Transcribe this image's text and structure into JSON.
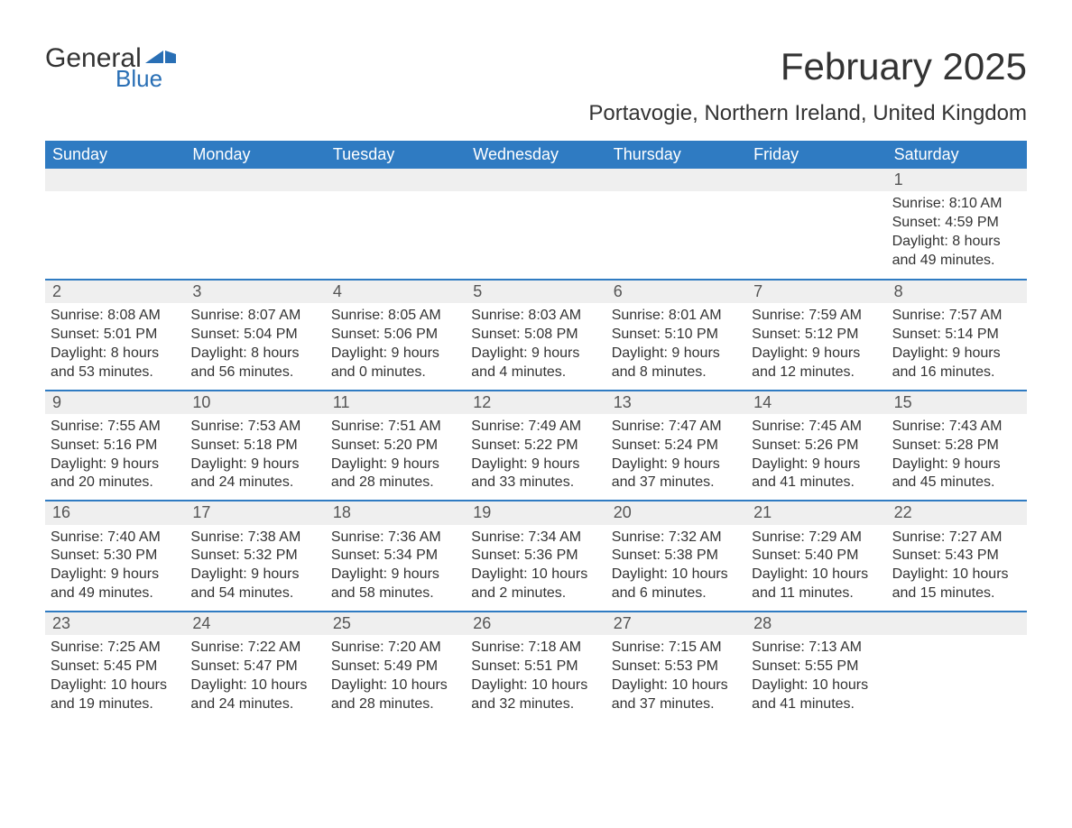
{
  "logo": {
    "word1": "General",
    "word2": "Blue",
    "brand_color": "#296fb5"
  },
  "header": {
    "month_title": "February 2025",
    "location": "Portavogie, Northern Ireland, United Kingdom"
  },
  "colors": {
    "header_bar": "#2f7bc2",
    "header_bar_text": "#ffffff",
    "daynum_bg": "#efefef",
    "week_divider": "#2f7bc2",
    "text": "#333333",
    "background": "#ffffff"
  },
  "dow": [
    "Sunday",
    "Monday",
    "Tuesday",
    "Wednesday",
    "Thursday",
    "Friday",
    "Saturday"
  ],
  "weeks": [
    [
      {
        "day": "",
        "sunrise": "",
        "sunset": "",
        "daylight1": "",
        "daylight2": ""
      },
      {
        "day": "",
        "sunrise": "",
        "sunset": "",
        "daylight1": "",
        "daylight2": ""
      },
      {
        "day": "",
        "sunrise": "",
        "sunset": "",
        "daylight1": "",
        "daylight2": ""
      },
      {
        "day": "",
        "sunrise": "",
        "sunset": "",
        "daylight1": "",
        "daylight2": ""
      },
      {
        "day": "",
        "sunrise": "",
        "sunset": "",
        "daylight1": "",
        "daylight2": ""
      },
      {
        "day": "",
        "sunrise": "",
        "sunset": "",
        "daylight1": "",
        "daylight2": ""
      },
      {
        "day": "1",
        "sunrise": "Sunrise: 8:10 AM",
        "sunset": "Sunset: 4:59 PM",
        "daylight1": "Daylight: 8 hours",
        "daylight2": "and 49 minutes."
      }
    ],
    [
      {
        "day": "2",
        "sunrise": "Sunrise: 8:08 AM",
        "sunset": "Sunset: 5:01 PM",
        "daylight1": "Daylight: 8 hours",
        "daylight2": "and 53 minutes."
      },
      {
        "day": "3",
        "sunrise": "Sunrise: 8:07 AM",
        "sunset": "Sunset: 5:04 PM",
        "daylight1": "Daylight: 8 hours",
        "daylight2": "and 56 minutes."
      },
      {
        "day": "4",
        "sunrise": "Sunrise: 8:05 AM",
        "sunset": "Sunset: 5:06 PM",
        "daylight1": "Daylight: 9 hours",
        "daylight2": "and 0 minutes."
      },
      {
        "day": "5",
        "sunrise": "Sunrise: 8:03 AM",
        "sunset": "Sunset: 5:08 PM",
        "daylight1": "Daylight: 9 hours",
        "daylight2": "and 4 minutes."
      },
      {
        "day": "6",
        "sunrise": "Sunrise: 8:01 AM",
        "sunset": "Sunset: 5:10 PM",
        "daylight1": "Daylight: 9 hours",
        "daylight2": "and 8 minutes."
      },
      {
        "day": "7",
        "sunrise": "Sunrise: 7:59 AM",
        "sunset": "Sunset: 5:12 PM",
        "daylight1": "Daylight: 9 hours",
        "daylight2": "and 12 minutes."
      },
      {
        "day": "8",
        "sunrise": "Sunrise: 7:57 AM",
        "sunset": "Sunset: 5:14 PM",
        "daylight1": "Daylight: 9 hours",
        "daylight2": "and 16 minutes."
      }
    ],
    [
      {
        "day": "9",
        "sunrise": "Sunrise: 7:55 AM",
        "sunset": "Sunset: 5:16 PM",
        "daylight1": "Daylight: 9 hours",
        "daylight2": "and 20 minutes."
      },
      {
        "day": "10",
        "sunrise": "Sunrise: 7:53 AM",
        "sunset": "Sunset: 5:18 PM",
        "daylight1": "Daylight: 9 hours",
        "daylight2": "and 24 minutes."
      },
      {
        "day": "11",
        "sunrise": "Sunrise: 7:51 AM",
        "sunset": "Sunset: 5:20 PM",
        "daylight1": "Daylight: 9 hours",
        "daylight2": "and 28 minutes."
      },
      {
        "day": "12",
        "sunrise": "Sunrise: 7:49 AM",
        "sunset": "Sunset: 5:22 PM",
        "daylight1": "Daylight: 9 hours",
        "daylight2": "and 33 minutes."
      },
      {
        "day": "13",
        "sunrise": "Sunrise: 7:47 AM",
        "sunset": "Sunset: 5:24 PM",
        "daylight1": "Daylight: 9 hours",
        "daylight2": "and 37 minutes."
      },
      {
        "day": "14",
        "sunrise": "Sunrise: 7:45 AM",
        "sunset": "Sunset: 5:26 PM",
        "daylight1": "Daylight: 9 hours",
        "daylight2": "and 41 minutes."
      },
      {
        "day": "15",
        "sunrise": "Sunrise: 7:43 AM",
        "sunset": "Sunset: 5:28 PM",
        "daylight1": "Daylight: 9 hours",
        "daylight2": "and 45 minutes."
      }
    ],
    [
      {
        "day": "16",
        "sunrise": "Sunrise: 7:40 AM",
        "sunset": "Sunset: 5:30 PM",
        "daylight1": "Daylight: 9 hours",
        "daylight2": "and 49 minutes."
      },
      {
        "day": "17",
        "sunrise": "Sunrise: 7:38 AM",
        "sunset": "Sunset: 5:32 PM",
        "daylight1": "Daylight: 9 hours",
        "daylight2": "and 54 minutes."
      },
      {
        "day": "18",
        "sunrise": "Sunrise: 7:36 AM",
        "sunset": "Sunset: 5:34 PM",
        "daylight1": "Daylight: 9 hours",
        "daylight2": "and 58 minutes."
      },
      {
        "day": "19",
        "sunrise": "Sunrise: 7:34 AM",
        "sunset": "Sunset: 5:36 PM",
        "daylight1": "Daylight: 10 hours",
        "daylight2": "and 2 minutes."
      },
      {
        "day": "20",
        "sunrise": "Sunrise: 7:32 AM",
        "sunset": "Sunset: 5:38 PM",
        "daylight1": "Daylight: 10 hours",
        "daylight2": "and 6 minutes."
      },
      {
        "day": "21",
        "sunrise": "Sunrise: 7:29 AM",
        "sunset": "Sunset: 5:40 PM",
        "daylight1": "Daylight: 10 hours",
        "daylight2": "and 11 minutes."
      },
      {
        "day": "22",
        "sunrise": "Sunrise: 7:27 AM",
        "sunset": "Sunset: 5:43 PM",
        "daylight1": "Daylight: 10 hours",
        "daylight2": "and 15 minutes."
      }
    ],
    [
      {
        "day": "23",
        "sunrise": "Sunrise: 7:25 AM",
        "sunset": "Sunset: 5:45 PM",
        "daylight1": "Daylight: 10 hours",
        "daylight2": "and 19 minutes."
      },
      {
        "day": "24",
        "sunrise": "Sunrise: 7:22 AM",
        "sunset": "Sunset: 5:47 PM",
        "daylight1": "Daylight: 10 hours",
        "daylight2": "and 24 minutes."
      },
      {
        "day": "25",
        "sunrise": "Sunrise: 7:20 AM",
        "sunset": "Sunset: 5:49 PM",
        "daylight1": "Daylight: 10 hours",
        "daylight2": "and 28 minutes."
      },
      {
        "day": "26",
        "sunrise": "Sunrise: 7:18 AM",
        "sunset": "Sunset: 5:51 PM",
        "daylight1": "Daylight: 10 hours",
        "daylight2": "and 32 minutes."
      },
      {
        "day": "27",
        "sunrise": "Sunrise: 7:15 AM",
        "sunset": "Sunset: 5:53 PM",
        "daylight1": "Daylight: 10 hours",
        "daylight2": "and 37 minutes."
      },
      {
        "day": "28",
        "sunrise": "Sunrise: 7:13 AM",
        "sunset": "Sunset: 5:55 PM",
        "daylight1": "Daylight: 10 hours",
        "daylight2": "and 41 minutes."
      },
      {
        "day": "",
        "sunrise": "",
        "sunset": "",
        "daylight1": "",
        "daylight2": ""
      }
    ]
  ]
}
